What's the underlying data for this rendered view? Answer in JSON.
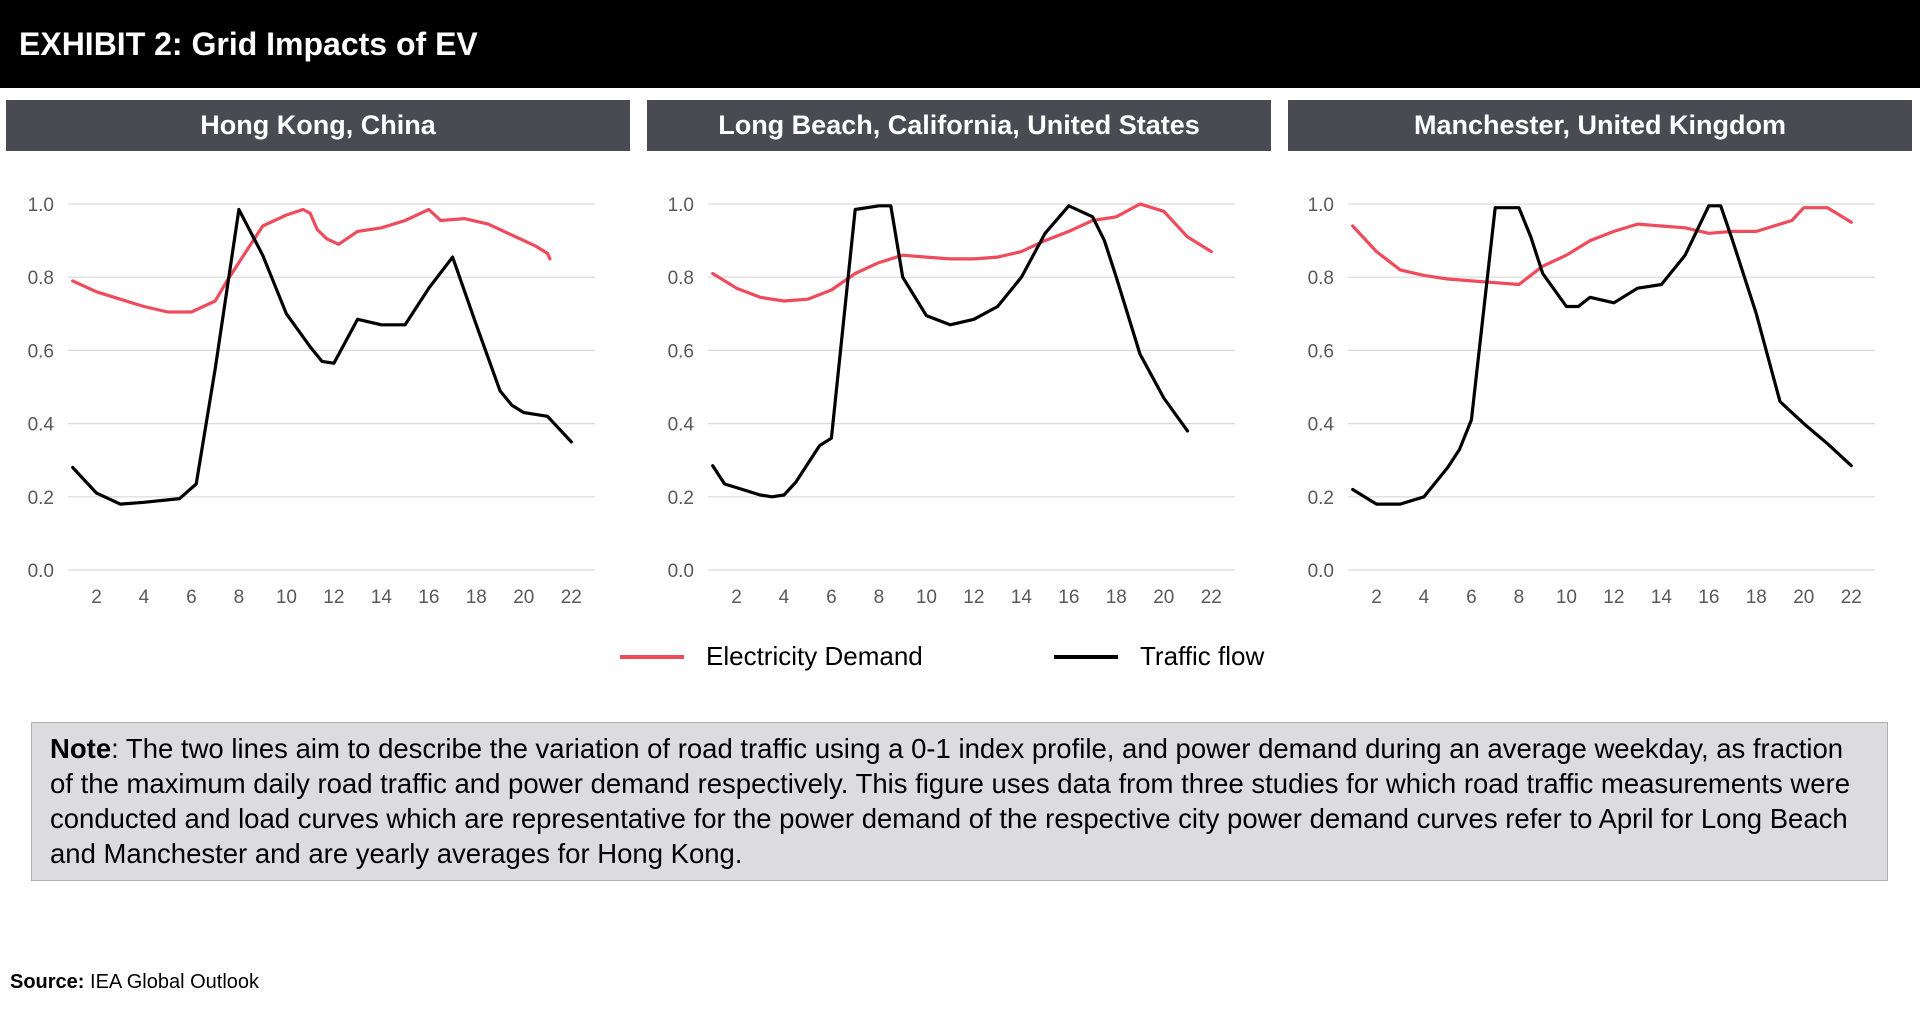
{
  "header": {
    "title": "EXHIBIT 2: Grid Impacts of EV"
  },
  "legend": [
    {
      "label": "Electricity Demand",
      "color": "#ee4b5d"
    },
    {
      "label": "Traffic flow",
      "color": "#000000"
    }
  ],
  "note": {
    "label": "Note",
    "text": ": The two lines aim to describe the variation of road traffic using a 0-1 index profile, and power demand during an average weekday, as fraction of the maximum daily road traffic and power demand respectively. This figure uses data from three studies for which road traffic measurements were conducted and load curves which are representative for the power demand of the respective city power demand curves refer to April for Long Beach and Manchester and are yearly averages for Hong Kong."
  },
  "source": {
    "label": "Source:",
    "text": " IEA Global Outlook"
  },
  "colors": {
    "demand": "#ee4b5d",
    "traffic": "#000000",
    "panel_header": "#4a4a52",
    "grid": "#d9d9d9"
  },
  "chart_data": [
    {
      "type": "line",
      "title": "Hong Kong, China",
      "xticks": [
        2,
        4,
        6,
        8,
        10,
        12,
        14,
        16,
        18,
        20,
        22
      ],
      "yticks": [
        "0.0",
        "0.2",
        "0.4",
        "0.6",
        "0.8",
        "1.0"
      ],
      "xlim": [
        0.8,
        23
      ],
      "ylim": [
        0,
        1
      ],
      "grid": true,
      "series": [
        {
          "name": "Electricity Demand",
          "points": [
            [
              1,
              0.79
            ],
            [
              2,
              0.76
            ],
            [
              3,
              0.74
            ],
            [
              4,
              0.72
            ],
            [
              5,
              0.705
            ],
            [
              6,
              0.705
            ],
            [
              7,
              0.735
            ],
            [
              7.5,
              0.79
            ],
            [
              8,
              0.84
            ],
            [
              9,
              0.94
            ],
            [
              10,
              0.97
            ],
            [
              10.7,
              0.985
            ],
            [
              11,
              0.975
            ],
            [
              11.3,
              0.93
            ],
            [
              11.7,
              0.905
            ],
            [
              12.2,
              0.89
            ],
            [
              13,
              0.925
            ],
            [
              14,
              0.935
            ],
            [
              15,
              0.955
            ],
            [
              16,
              0.985
            ],
            [
              16.5,
              0.955
            ],
            [
              17.5,
              0.96
            ],
            [
              18.5,
              0.945
            ],
            [
              19.5,
              0.915
            ],
            [
              20.5,
              0.885
            ],
            [
              21,
              0.865
            ],
            [
              21.1,
              0.85
            ]
          ]
        },
        {
          "name": "Traffic flow",
          "points": [
            [
              1,
              0.28
            ],
            [
              2,
              0.21
            ],
            [
              3,
              0.18
            ],
            [
              4,
              0.185
            ],
            [
              5.5,
              0.195
            ],
            [
              6.2,
              0.235
            ],
            [
              7,
              0.55
            ],
            [
              8,
              0.985
            ],
            [
              9,
              0.86
            ],
            [
              10,
              0.7
            ],
            [
              11,
              0.61
            ],
            [
              11.5,
              0.57
            ],
            [
              12,
              0.565
            ],
            [
              13,
              0.685
            ],
            [
              14,
              0.67
            ],
            [
              15,
              0.67
            ],
            [
              16,
              0.77
            ],
            [
              17,
              0.855
            ],
            [
              18,
              0.67
            ],
            [
              19,
              0.49
            ],
            [
              19.5,
              0.45
            ],
            [
              20,
              0.43
            ],
            [
              21,
              0.42
            ],
            [
              22,
              0.35
            ]
          ]
        }
      ]
    },
    {
      "type": "line",
      "title": "Long Beach, California, United States",
      "xticks": [
        2,
        4,
        6,
        8,
        10,
        12,
        14,
        16,
        18,
        20,
        22
      ],
      "yticks": [
        "0.0",
        "0.2",
        "0.4",
        "0.6",
        "0.8",
        "1.0"
      ],
      "xlim": [
        0.8,
        23
      ],
      "ylim": [
        0,
        1
      ],
      "grid": true,
      "series": [
        {
          "name": "Electricity Demand",
          "points": [
            [
              1,
              0.81
            ],
            [
              2,
              0.77
            ],
            [
              3,
              0.745
            ],
            [
              4,
              0.735
            ],
            [
              5,
              0.74
            ],
            [
              6,
              0.765
            ],
            [
              7,
              0.81
            ],
            [
              8,
              0.84
            ],
            [
              9,
              0.86
            ],
            [
              10,
              0.855
            ],
            [
              11,
              0.85
            ],
            [
              12,
              0.85
            ],
            [
              13,
              0.855
            ],
            [
              14,
              0.87
            ],
            [
              15,
              0.9
            ],
            [
              16,
              0.925
            ],
            [
              17,
              0.955
            ],
            [
              18,
              0.965
            ],
            [
              19,
              1.0
            ],
            [
              20,
              0.98
            ],
            [
              21,
              0.91
            ],
            [
              22,
              0.87
            ]
          ]
        },
        {
          "name": "Traffic flow",
          "points": [
            [
              1,
              0.285
            ],
            [
              1.5,
              0.235
            ],
            [
              2,
              0.225
            ],
            [
              3,
              0.205
            ],
            [
              3.5,
              0.2
            ],
            [
              4,
              0.205
            ],
            [
              4.5,
              0.24
            ],
            [
              5,
              0.29
            ],
            [
              5.5,
              0.34
            ],
            [
              6,
              0.36
            ],
            [
              7,
              0.985
            ],
            [
              8,
              0.995
            ],
            [
              8.5,
              0.995
            ],
            [
              9,
              0.8
            ],
            [
              10,
              0.695
            ],
            [
              11,
              0.67
            ],
            [
              12,
              0.685
            ],
            [
              13,
              0.72
            ],
            [
              14,
              0.8
            ],
            [
              15,
              0.92
            ],
            [
              16,
              0.995
            ],
            [
              17,
              0.965
            ],
            [
              17.5,
              0.9
            ],
            [
              18,
              0.8
            ],
            [
              19,
              0.59
            ],
            [
              20,
              0.47
            ],
            [
              21,
              0.38
            ]
          ]
        }
      ]
    },
    {
      "type": "line",
      "title": "Manchester, United Kingdom",
      "xticks": [
        2,
        4,
        6,
        8,
        10,
        12,
        14,
        16,
        18,
        20,
        22
      ],
      "yticks": [
        "0.0",
        "0.2",
        "0.4",
        "0.6",
        "0.8",
        "1.0"
      ],
      "xlim": [
        0.8,
        23
      ],
      "ylim": [
        0,
        1
      ],
      "grid": true,
      "series": [
        {
          "name": "Electricity Demand",
          "points": [
            [
              1,
              0.94
            ],
            [
              2,
              0.87
            ],
            [
              3,
              0.82
            ],
            [
              4,
              0.805
            ],
            [
              5,
              0.795
            ],
            [
              6,
              0.79
            ],
            [
              7,
              0.785
            ],
            [
              8,
              0.78
            ],
            [
              9,
              0.83
            ],
            [
              10,
              0.86
            ],
            [
              11,
              0.9
            ],
            [
              12,
              0.925
            ],
            [
              13,
              0.945
            ],
            [
              14,
              0.94
            ],
            [
              15,
              0.935
            ],
            [
              16,
              0.92
            ],
            [
              17,
              0.925
            ],
            [
              18,
              0.925
            ],
            [
              19,
              0.945
            ],
            [
              19.5,
              0.955
            ],
            [
              20,
              0.99
            ],
            [
              21,
              0.99
            ],
            [
              22,
              0.95
            ]
          ]
        },
        {
          "name": "Traffic flow",
          "points": [
            [
              1,
              0.22
            ],
            [
              2,
              0.18
            ],
            [
              3,
              0.18
            ],
            [
              4,
              0.2
            ],
            [
              5,
              0.28
            ],
            [
              5.5,
              0.33
            ],
            [
              6,
              0.41
            ],
            [
              7,
              0.99
            ],
            [
              8,
              0.99
            ],
            [
              8.5,
              0.91
            ],
            [
              9,
              0.81
            ],
            [
              10,
              0.72
            ],
            [
              10.5,
              0.72
            ],
            [
              11,
              0.745
            ],
            [
              12,
              0.73
            ],
            [
              13,
              0.77
            ],
            [
              14,
              0.78
            ],
            [
              15,
              0.86
            ],
            [
              16,
              0.995
            ],
            [
              16.5,
              0.995
            ],
            [
              17,
              0.9
            ],
            [
              18,
              0.7
            ],
            [
              19,
              0.46
            ],
            [
              20,
              0.4
            ],
            [
              21,
              0.345
            ],
            [
              22,
              0.285
            ]
          ]
        }
      ]
    }
  ]
}
